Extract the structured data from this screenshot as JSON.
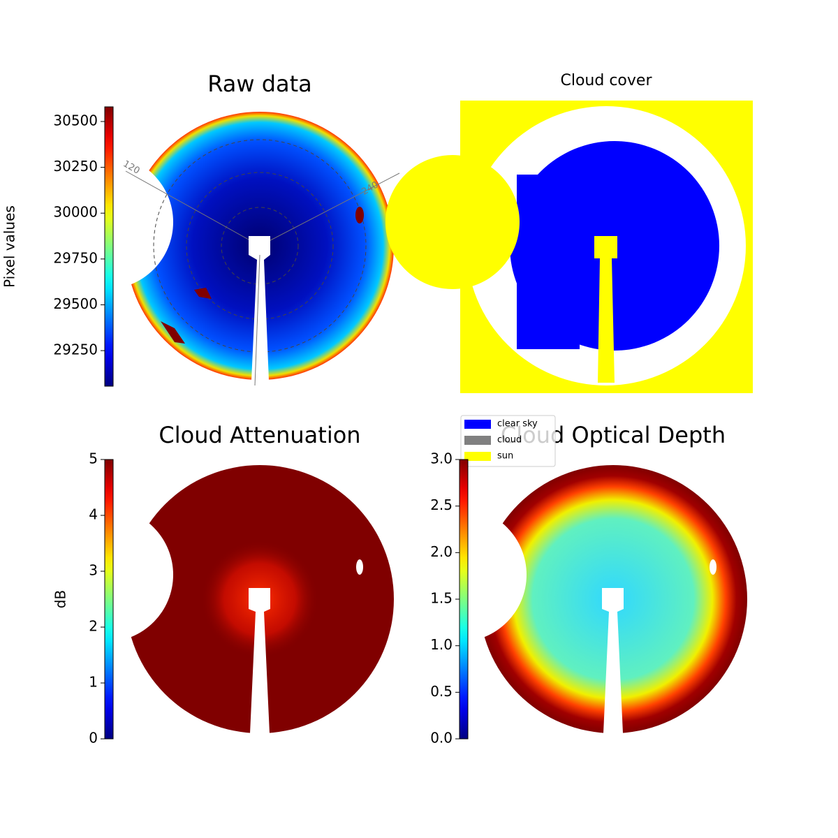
{
  "chart_data": [
    {
      "type": "image",
      "title": "Raw data",
      "annotations": [
        "120",
        "240"
      ],
      "colorbar": {
        "label": "Pixel values",
        "colormap": "jet",
        "ylim": [
          29056,
          30580
        ],
        "yticks": [
          29250,
          29500,
          29750,
          30000,
          30250,
          30500
        ]
      }
    },
    {
      "type": "image",
      "title": "Cloud cover",
      "legend": [
        {
          "name": "clear sky",
          "color": "#0000ff"
        },
        {
          "name": "cloud",
          "color": "#808080"
        },
        {
          "name": "sun",
          "color": "#ffff00"
        }
      ]
    },
    {
      "type": "image",
      "title": "Cloud Attenuation",
      "colorbar": {
        "label": "dB",
        "colormap": "jet",
        "ylim": [
          0,
          5
        ],
        "yticks": [
          0,
          1,
          2,
          3,
          4,
          5
        ]
      }
    },
    {
      "type": "image",
      "title": "Cloud Optical Depth",
      "colorbar": {
        "colormap": "jet",
        "ylim": [
          0,
          3
        ],
        "yticks": [
          {
            "value": 0,
            "label": "0.0"
          },
          0.5,
          {
            "value": 1,
            "label": "1.0"
          },
          1.5,
          {
            "value": 2,
            "label": "2.0"
          },
          2.5,
          {
            "value": 3,
            "label": "3.0"
          }
        ]
      }
    }
  ]
}
